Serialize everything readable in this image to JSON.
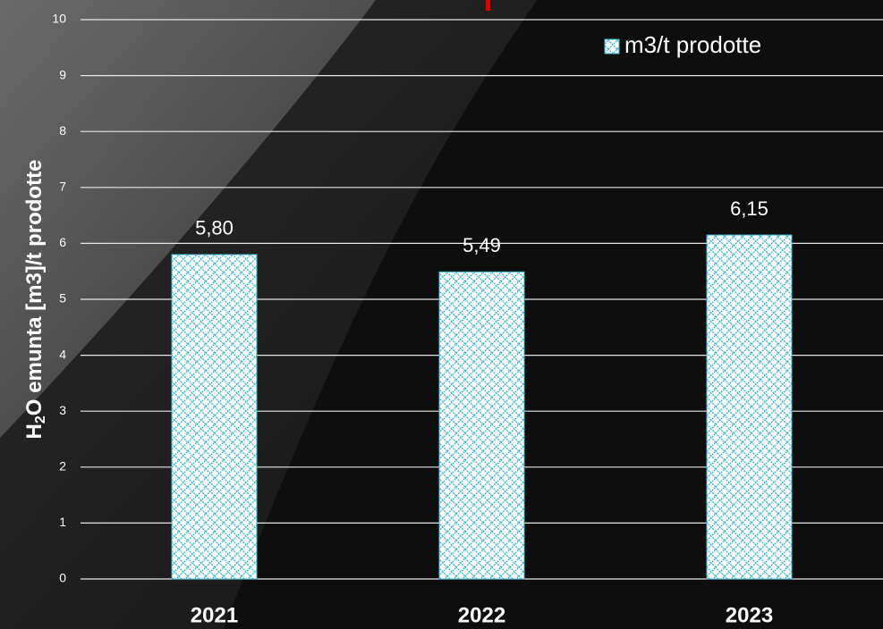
{
  "chart_data": {
    "type": "bar",
    "ylabel": [
      "H",
      "2",
      "O emunta [m3]/t prodotte"
    ],
    "categories": [
      "2021",
      "2022",
      "2023"
    ],
    "series": [
      {
        "name": "m3/t prodotte",
        "color": "#3fb4c8",
        "values": [
          5.8,
          5.49,
          6.15
        ],
        "value_labels": [
          "5,80",
          "5,49",
          "6,15"
        ]
      }
    ],
    "ylim": [
      0,
      10
    ],
    "yticks": [
      0,
      1,
      2,
      3,
      4,
      5,
      6,
      7,
      8,
      9,
      10
    ],
    "grid": true,
    "legend": "top-right"
  }
}
